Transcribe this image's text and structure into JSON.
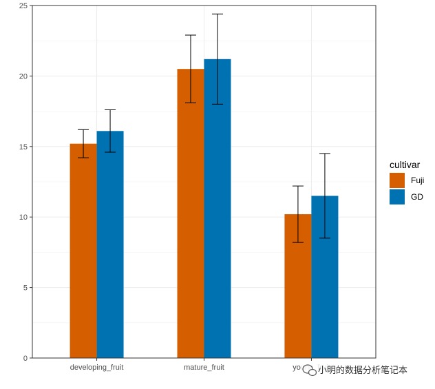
{
  "chart_data": {
    "type": "bar",
    "categories": [
      "developing_fruit",
      "mature_fruit",
      "young_fruit"
    ],
    "series": [
      {
        "name": "Fuji",
        "color": "#D55E00",
        "values": [
          15.2,
          20.5,
          10.2
        ],
        "error": [
          1.0,
          2.4,
          2.0
        ]
      },
      {
        "name": "GD",
        "color": "#0072B2",
        "values": [
          16.1,
          21.2,
          11.5
        ],
        "error": [
          1.5,
          3.2,
          3.0
        ]
      }
    ],
    "ylim": [
      0,
      25
    ],
    "yticks": [
      0,
      5,
      10,
      15,
      20,
      25
    ],
    "grid": true,
    "legend": {
      "title": "cultivar",
      "position": "right"
    }
  },
  "watermark": {
    "icon": "wechat-icon",
    "text": "小明的数据分析笔记本"
  }
}
